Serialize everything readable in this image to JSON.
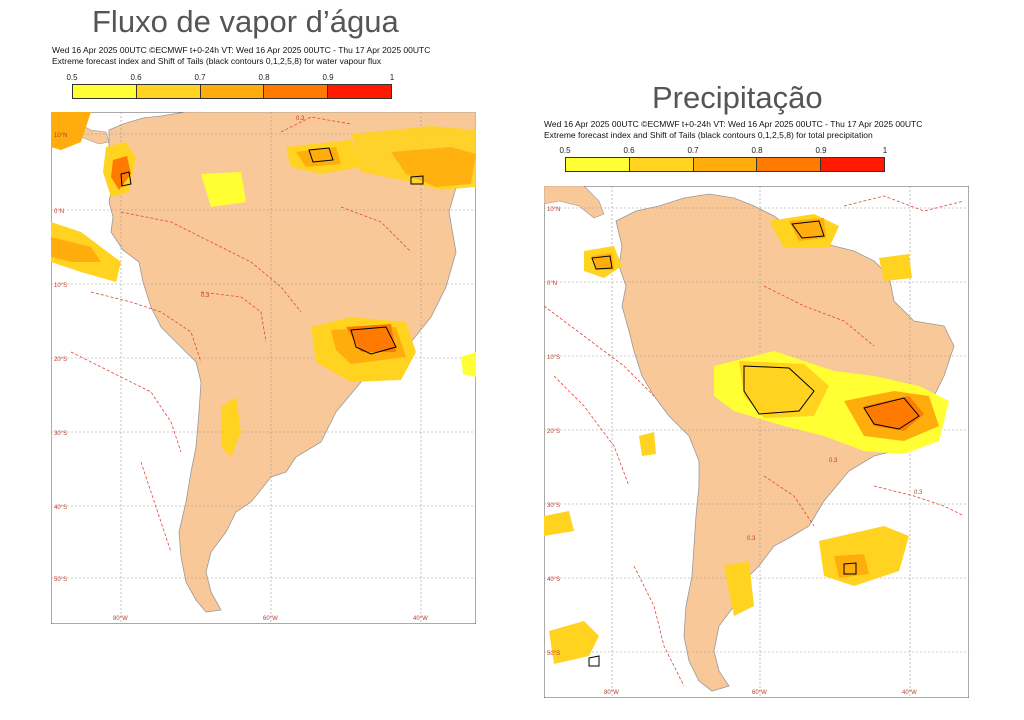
{
  "left_panel": {
    "title": "Fluxo de vapor d’água",
    "subtitle_line1": "Wed 16 Apr 2025 00UTC ©ECMWF t+0-24h  VT: Wed 16 Apr 2025 00UTC - Thu 17 Apr 2025 00UTC",
    "subtitle_line2": "Extreme forecast index and Shift of Tails (black contours 0,1,2,5,8) for water vapour flux",
    "lon_labels": [
      "80°W",
      "60°W",
      "40°W"
    ],
    "lat_labels": [
      "10°N",
      "0°N",
      "10°S",
      "20°S",
      "30°S",
      "40°S",
      "50°S"
    ],
    "contour_label": "0.3"
  },
  "right_panel": {
    "title": "Precipitação",
    "subtitle_line1": "Wed 16 Apr 2025 00UTC ©ECMWF t+0-24h  VT: Wed 16 Apr 2025 00UTC - Thu 17 Apr 2025 00UTC",
    "subtitle_line2": "Extreme forecast index and Shift of Tails (black contours 0,1,2,5,8) for total precipitation",
    "lon_labels": [
      "80°W",
      "60°W",
      "40°W"
    ],
    "lat_labels": [
      "10°N",
      "0°N",
      "10°S",
      "20°S",
      "30°S",
      "40°S",
      "50°S"
    ],
    "contour_label": "0.3"
  },
  "colorbar": {
    "ticks": [
      "0.5",
      "0.6",
      "0.7",
      "0.8",
      "0.9",
      "1"
    ],
    "colors": [
      "#ffff33",
      "#ffd31f",
      "#ffad0d",
      "#ff7a00",
      "#ff1a00"
    ]
  },
  "map_colors": {
    "land": "#f9c898",
    "ocean": "#ffffff",
    "contour": "#e2463b",
    "sot": "#000000",
    "border": "#b9a28c"
  }
}
